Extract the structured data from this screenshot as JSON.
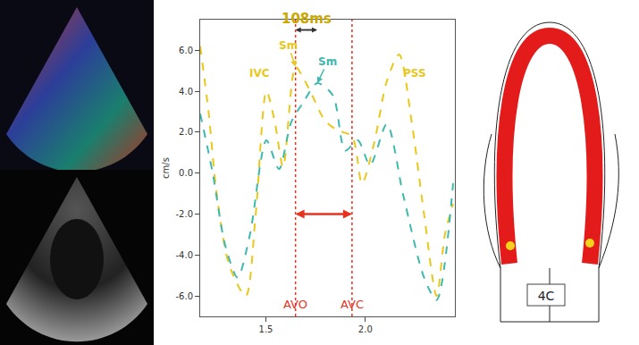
{
  "chart_data": {
    "type": "line",
    "y_label": "cm/s",
    "xlim": [
      1.17,
      2.45
    ],
    "xticks": [
      1.5,
      {
        "value": 2,
        "label": "2.0"
      }
    ],
    "ylim": [
      -7,
      7.5
    ],
    "yticks": [
      {
        "value": -6,
        "label": "-6.0"
      },
      {
        "value": -4,
        "label": "-4.0"
      },
      {
        "value": -2,
        "label": "-2.0"
      },
      {
        "value": 0,
        "label": "0.0"
      },
      {
        "value": 2,
        "label": "2.0"
      },
      {
        "value": 4,
        "label": "4.0"
      },
      {
        "value": 6,
        "label": "6.0"
      }
    ],
    "grid": false,
    "series": [
      {
        "color": "#e8c81a",
        "line_style": "dashed",
        "x": [
          1.17,
          1.212,
          1.253,
          1.316,
          1.399,
          1.449,
          1.503,
          1.545,
          1.587,
          1.649,
          1.691,
          1.733,
          1.795,
          1.858,
          1.933,
          1.983,
          2.045,
          2.108,
          2.17,
          2.233,
          2.295,
          2.358,
          2.4,
          2.441
        ],
        "values": [
          6.2,
          3.0,
          -1.0,
          -4.5,
          -6.0,
          -2.0,
          4.0,
          2.5,
          0.3,
          5.2,
          4.6,
          3.8,
          2.6,
          2.1,
          1.8,
          -0.5,
          1.5,
          4.5,
          5.8,
          2.5,
          -2.0,
          -6.0,
          -3.0,
          -1.5
        ]
      },
      {
        "color": "#3fb8ae",
        "line_style": "dashed",
        "x": [
          1.17,
          1.233,
          1.295,
          1.358,
          1.42,
          1.503,
          1.566,
          1.628,
          1.691,
          1.758,
          1.837,
          1.899,
          1.962,
          2.024,
          2.108,
          2.191,
          2.295,
          2.358,
          2.441
        ],
        "values": [
          2.9,
          0.0,
          -3.5,
          -5.1,
          -3.0,
          1.6,
          0.2,
          2.5,
          3.5,
          4.4,
          3.8,
          1.1,
          1.6,
          0.4,
          2.4,
          -1.1,
          -5.1,
          -6.2,
          -0.5
        ]
      }
    ],
    "events": [
      {
        "label": "AVO",
        "x": 1.649,
        "y": -6.4
      },
      {
        "label": "AVC",
        "x": 1.933,
        "y": -6.4
      }
    ],
    "span": {
      "from": 1.649,
      "to": 1.933,
      "y": -2.0,
      "color": "#e8321e"
    },
    "delay": {
      "label": "108ms",
      "from": 1.649,
      "to": 1.758,
      "y": 7.0
    },
    "annotations": [
      {
        "text": "Sm",
        "x": 1.649,
        "y": 5.2,
        "color": "#e8c81a",
        "arrow": true
      },
      {
        "text": "Sm",
        "x": 1.758,
        "y": 4.4,
        "color": "#3fb8ae",
        "arrow": true
      },
      {
        "text": "IVC",
        "x": 1.47,
        "y": 4.9,
        "color": "#e8c81a",
        "arrow": false
      },
      {
        "text": "PSS",
        "x": 2.25,
        "y": 4.9,
        "color": "#e8c81a",
        "arrow": false
      }
    ]
  },
  "diagram": {
    "label": "4C"
  }
}
